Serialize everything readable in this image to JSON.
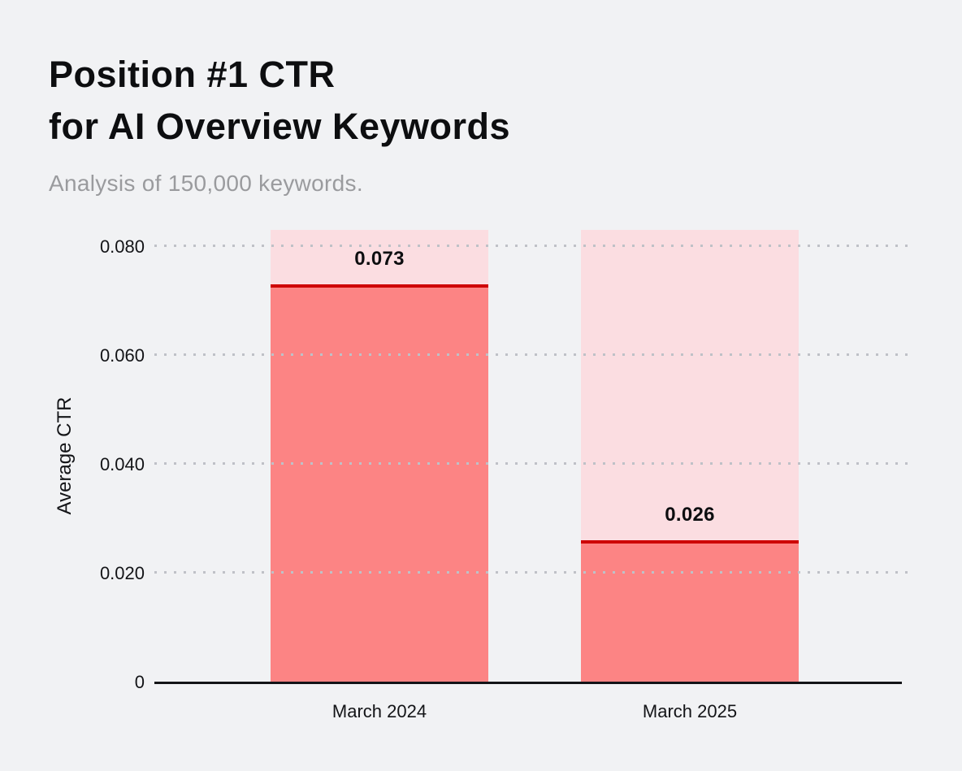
{
  "header": {
    "title_line1": "Position #1 CTR",
    "title_line2": "for AI Overview Keywords",
    "subtitle": "Analysis of 150,000 keywords."
  },
  "colors": {
    "background": "#F1F2F4",
    "title_text": "#0D0E10",
    "subtitle_text": "#9A9B9E",
    "axis_text": "#131417",
    "axis_line": "#131417",
    "grid_dot": "#BFC1C7",
    "bar_track": "#FBDDE1",
    "bar_fill": "#FC8484",
    "bar_top_line": "#CE0000",
    "value_label_text": "#0D0E10"
  },
  "chart_data": {
    "type": "bar",
    "title": "Position #1 CTR for AI Overview Keywords",
    "subtitle": "Analysis of 150,000 keywords.",
    "categories": [
      "March 2024",
      "March 2025"
    ],
    "values": [
      0.073,
      0.026
    ],
    "value_labels": [
      "0.073",
      "0.026"
    ],
    "xlabel": "",
    "ylabel": "Average CTR",
    "ylim": [
      0,
      0.083
    ],
    "yticks": [
      0,
      0.02,
      0.04,
      0.06,
      0.08
    ],
    "ytick_labels": [
      "0",
      "0.020",
      "0.040",
      "0.060",
      "0.080"
    ],
    "grid": "horizontal dotted gridlines drawn over bars",
    "legend": "none",
    "bar_style": "full-height pale pink track behind each bar; solid coral fill up to value with dark red line at the top edge; value label printed inside the track above the fill"
  }
}
